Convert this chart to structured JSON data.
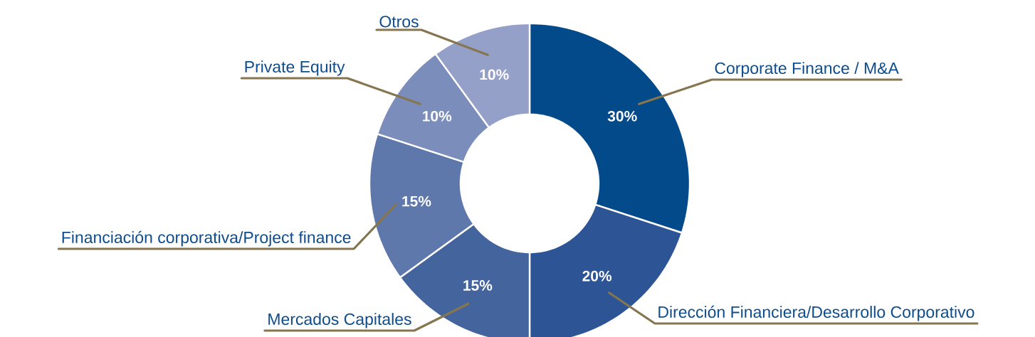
{
  "chart_data": {
    "type": "donut",
    "categories": [
      "Corporate Finance / M&A",
      "Dirección Financiera/Desarrollo Corporativo",
      "Mercados Capitales",
      "Financiación corporativa/Project finance",
      "Private Equity",
      "Otros"
    ],
    "values": [
      30,
      20,
      15,
      15,
      10,
      10
    ],
    "value_labels": [
      "30%",
      "20%",
      "15%",
      "15%",
      "10%",
      "10%"
    ],
    "colors": [
      "#034a8a",
      "#2d5596",
      "#44649e",
      "#5e78ac",
      "#7b8dbb",
      "#95a0c9"
    ]
  }
}
